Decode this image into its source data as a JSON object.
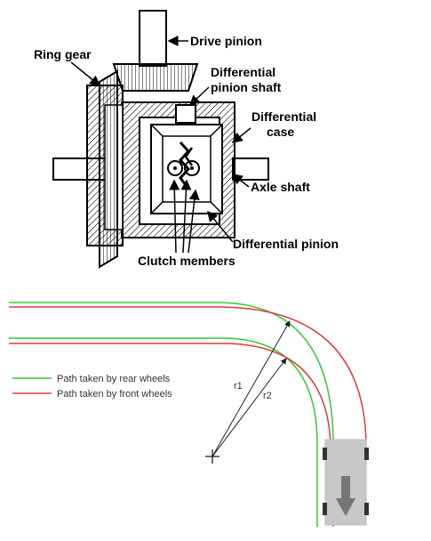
{
  "differential": {
    "labels": {
      "drive_pinion": "Drive pinion",
      "ring_gear": "Ring gear",
      "diff_pinion_shaft_1": "Differential",
      "diff_pinion_shaft_2": "pinion shaft",
      "diff_case_1": "Differential",
      "diff_case_2": "case",
      "axle_shaft": "Axle shaft",
      "diff_pinion": "Differential pinion",
      "clutch_members": "Clutch members"
    }
  },
  "turning": {
    "legend": {
      "rear": "Path taken by rear wheels",
      "front": "Path taken by front wheels"
    },
    "radii": {
      "r1": "r1",
      "r2": "r2"
    },
    "colors": {
      "rear": "#33cc33",
      "front": "#e23b3b",
      "car_body": "#c8c8c8"
    }
  }
}
